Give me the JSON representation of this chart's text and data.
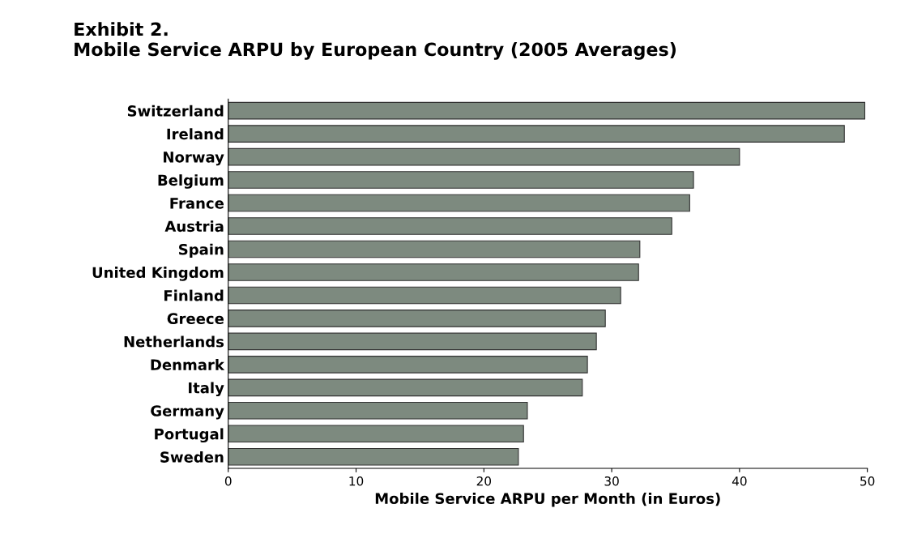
{
  "chart_data": {
    "type": "bar",
    "orientation": "horizontal",
    "title": "Exhibit 2.\nMobile Service ARPU by European Country (2005 Averages)",
    "xlabel": "Mobile Service ARPU per Month (in Euros)",
    "categories": [
      "Switzerland",
      "Ireland",
      "Norway",
      "Belgium",
      "France",
      "Austria",
      "Spain",
      "United Kingdom",
      "Finland",
      "Greece",
      "Netherlands",
      "Denmark",
      "Italy",
      "Germany",
      "Portugal",
      "Sweden"
    ],
    "values": [
      49.8,
      48.2,
      40.0,
      36.4,
      36.1,
      34.7,
      32.2,
      32.1,
      30.7,
      29.5,
      28.8,
      28.1,
      27.7,
      23.4,
      23.1,
      22.7
    ],
    "color": "#7d8a7f",
    "xlim": [
      0,
      50
    ],
    "xticks": [
      0,
      10,
      20,
      30,
      40,
      50
    ],
    "grid": false,
    "legend": false
  }
}
